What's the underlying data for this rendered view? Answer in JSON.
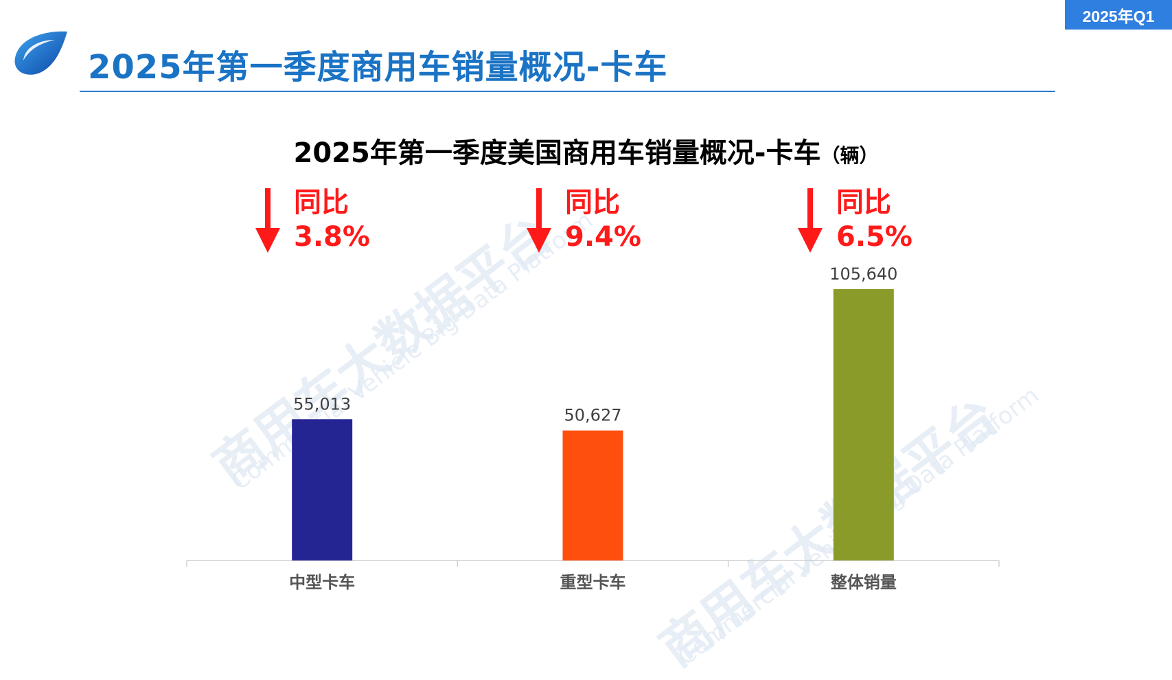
{
  "badge": "2025年Q1",
  "page_title": "2025年第一季度商用车销量概况-卡车",
  "watermark": {
    "cn": "商用车大数据平台",
    "en": "Commercial Vehicle Big Data Platform"
  },
  "yoy": [
    {
      "label": "同比",
      "value": "3.8%",
      "direction": "down"
    },
    {
      "label": "同比",
      "value": "9.4%",
      "direction": "down"
    },
    {
      "label": "同比",
      "value": "6.5%",
      "direction": "down"
    }
  ],
  "colors": {
    "accent": "#1a73c4",
    "badge": "#2f7fe0",
    "down": "#ff1a1a"
  },
  "chart_data": {
    "type": "bar",
    "title": "2025年第一季度美国商用车销量概况-卡车",
    "unit": "（辆）",
    "categories": [
      "中型卡车",
      "重型卡车",
      "整体销量"
    ],
    "values": [
      55013,
      50627,
      105640
    ],
    "value_labels": [
      "55,013",
      "50,627",
      "105,640"
    ],
    "colors": [
      "#252493",
      "#ff4f0f",
      "#8b9b2a"
    ],
    "ylim": [
      0,
      115000
    ],
    "grid": false,
    "legend": "none"
  }
}
